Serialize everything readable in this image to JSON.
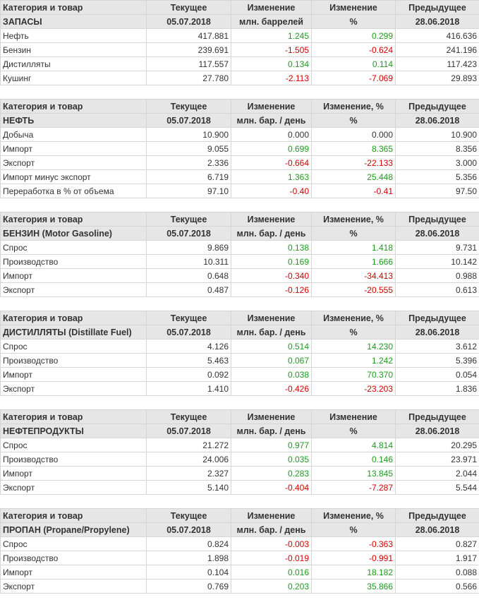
{
  "sections": [
    {
      "header1": [
        "Категория и товар",
        "Текущее",
        "Изменение",
        "Изменение",
        "Предыдущее"
      ],
      "header2": [
        "ЗАПАСЫ",
        "05.07.2018",
        "млн. баррелей",
        "%",
        "28.06.2018"
      ],
      "rows": [
        [
          "Нефть",
          "417.881",
          "1.245",
          "0.299",
          "416.636"
        ],
        [
          "Бензин",
          "239.691",
          "-1.505",
          "-0.624",
          "241.196"
        ],
        [
          "Дистилляты",
          "117.557",
          "0.134",
          "0.114",
          "117.423"
        ],
        [
          "Кушинг",
          "27.780",
          "-2.113",
          "-7.069",
          "29.893"
        ]
      ]
    },
    {
      "header1": [
        "Категория и товар",
        "Текущее",
        "Изменение",
        "Изменение, %",
        "Предыдущее"
      ],
      "header2": [
        "НЕФТЬ",
        "05.07.2018",
        "млн. бар. / день",
        "%",
        "28.06.2018"
      ],
      "rows": [
        [
          "Добыча",
          "10.900",
          "0.000",
          "0.000",
          "10.900"
        ],
        [
          "Импорт",
          "9.055",
          "0.699",
          "8.365",
          "8.356"
        ],
        [
          "Экспорт",
          "2.336",
          "-0.664",
          "-22.133",
          "3.000"
        ],
        [
          "Импорт минус экспорт",
          "6.719",
          "1.363",
          "25.448",
          "5.356"
        ],
        [
          "Переработка в % от объема",
          "97.10",
          "-0.40",
          "-0.41",
          "97.50"
        ]
      ]
    },
    {
      "header1": [
        "Категория и товар",
        "Текущее",
        "Изменение",
        "Изменение, %",
        "Предыдущее"
      ],
      "header2": [
        "БЕНЗИН (Motor Gasoline)",
        "05.07.2018",
        "млн. бар. / день",
        "%",
        "28.06.2018"
      ],
      "rows": [
        [
          "Спрос",
          "9.869",
          "0.138",
          "1.418",
          "9.731"
        ],
        [
          "Производство",
          "10.311",
          "0.169",
          "1.666",
          "10.142"
        ],
        [
          "Импорт",
          "0.648",
          "-0.340",
          "-34.413",
          "0.988"
        ],
        [
          "Экспорт",
          "0.487",
          "-0.126",
          "-20.555",
          "0.613"
        ]
      ]
    },
    {
      "header1": [
        "Категория и товар",
        "Текущее",
        "Изменение",
        "Изменение, %",
        "Предыдущее"
      ],
      "header2": [
        "ДИСТИЛЛЯТЫ (Distillate Fuel)",
        "05.07.2018",
        "млн. бар. / день",
        "%",
        "28.06.2018"
      ],
      "rows": [
        [
          "Спрос",
          "4.126",
          "0.514",
          "14.230",
          "3.612"
        ],
        [
          "Производство",
          "5.463",
          "0.067",
          "1.242",
          "5.396"
        ],
        [
          "Импорт",
          "0.092",
          "0.038",
          "70.370",
          "0.054"
        ],
        [
          "Экспорт",
          "1.410",
          "-0.426",
          "-23.203",
          "1.836"
        ]
      ]
    },
    {
      "header1": [
        "Категория и товар",
        "Текущее",
        "Изменение",
        "Изменение",
        "Предыдущее"
      ],
      "header2": [
        "НЕФТЕПРОДУКТЫ",
        "05.07.2018",
        "млн. бар. / день",
        "%",
        "28.06.2018"
      ],
      "rows": [
        [
          "Спрос",
          "21.272",
          "0.977",
          "4.814",
          "20.295"
        ],
        [
          "Производство",
          "24.006",
          "0.035",
          "0.146",
          "23.971"
        ],
        [
          "Импорт",
          "2.327",
          "0.283",
          "13.845",
          "2.044"
        ],
        [
          "Экспорт",
          "5.140",
          "-0.404",
          "-7.287",
          "5.544"
        ]
      ]
    },
    {
      "header1": [
        "Категория и товар",
        "Текущее",
        "Изменение",
        "Изменение, %",
        "Предыдущее"
      ],
      "header2": [
        "ПРОПАН (Propane/Propylene)",
        "05.07.2018",
        "млн. бар. / день",
        "%",
        "28.06.2018"
      ],
      "rows": [
        [
          "Спрос",
          "0.824",
          "-0.003",
          "-0.363",
          "0.827"
        ],
        [
          "Производство",
          "1.898",
          "-0.019",
          "-0.991",
          "1.917"
        ],
        [
          "Импорт",
          "0.104",
          "0.016",
          "18.182",
          "0.088"
        ],
        [
          "Экспорт",
          "0.769",
          "0.203",
          "35.866",
          "0.566"
        ]
      ]
    }
  ],
  "colors": {
    "positive": "#1e9a1e",
    "negative": "#d00000",
    "header_bg": "#e6e6e6"
  }
}
